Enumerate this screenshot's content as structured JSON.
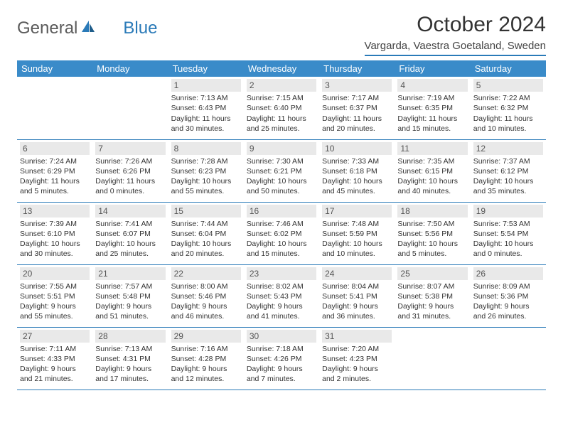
{
  "logo": {
    "text1": "General",
    "text2": "Blue"
  },
  "title": "October 2024",
  "location": "Vargarda, Vaestra Goetaland, Sweden",
  "colors": {
    "header_bg": "#3a8bc9",
    "header_text": "#ffffff",
    "border": "#2a7ab8",
    "daynum_bg": "#e9e9e9",
    "text": "#333333"
  },
  "weekdays": [
    "Sunday",
    "Monday",
    "Tuesday",
    "Wednesday",
    "Thursday",
    "Friday",
    "Saturday"
  ],
  "weeks": [
    [
      null,
      null,
      {
        "d": "1",
        "sr": "Sunrise: 7:13 AM",
        "ss": "Sunset: 6:43 PM",
        "dl1": "Daylight: 11 hours",
        "dl2": "and 30 minutes."
      },
      {
        "d": "2",
        "sr": "Sunrise: 7:15 AM",
        "ss": "Sunset: 6:40 PM",
        "dl1": "Daylight: 11 hours",
        "dl2": "and 25 minutes."
      },
      {
        "d": "3",
        "sr": "Sunrise: 7:17 AM",
        "ss": "Sunset: 6:37 PM",
        "dl1": "Daylight: 11 hours",
        "dl2": "and 20 minutes."
      },
      {
        "d": "4",
        "sr": "Sunrise: 7:19 AM",
        "ss": "Sunset: 6:35 PM",
        "dl1": "Daylight: 11 hours",
        "dl2": "and 15 minutes."
      },
      {
        "d": "5",
        "sr": "Sunrise: 7:22 AM",
        "ss": "Sunset: 6:32 PM",
        "dl1": "Daylight: 11 hours",
        "dl2": "and 10 minutes."
      }
    ],
    [
      {
        "d": "6",
        "sr": "Sunrise: 7:24 AM",
        "ss": "Sunset: 6:29 PM",
        "dl1": "Daylight: 11 hours",
        "dl2": "and 5 minutes."
      },
      {
        "d": "7",
        "sr": "Sunrise: 7:26 AM",
        "ss": "Sunset: 6:26 PM",
        "dl1": "Daylight: 11 hours",
        "dl2": "and 0 minutes."
      },
      {
        "d": "8",
        "sr": "Sunrise: 7:28 AM",
        "ss": "Sunset: 6:23 PM",
        "dl1": "Daylight: 10 hours",
        "dl2": "and 55 minutes."
      },
      {
        "d": "9",
        "sr": "Sunrise: 7:30 AM",
        "ss": "Sunset: 6:21 PM",
        "dl1": "Daylight: 10 hours",
        "dl2": "and 50 minutes."
      },
      {
        "d": "10",
        "sr": "Sunrise: 7:33 AM",
        "ss": "Sunset: 6:18 PM",
        "dl1": "Daylight: 10 hours",
        "dl2": "and 45 minutes."
      },
      {
        "d": "11",
        "sr": "Sunrise: 7:35 AM",
        "ss": "Sunset: 6:15 PM",
        "dl1": "Daylight: 10 hours",
        "dl2": "and 40 minutes."
      },
      {
        "d": "12",
        "sr": "Sunrise: 7:37 AM",
        "ss": "Sunset: 6:12 PM",
        "dl1": "Daylight: 10 hours",
        "dl2": "and 35 minutes."
      }
    ],
    [
      {
        "d": "13",
        "sr": "Sunrise: 7:39 AM",
        "ss": "Sunset: 6:10 PM",
        "dl1": "Daylight: 10 hours",
        "dl2": "and 30 minutes."
      },
      {
        "d": "14",
        "sr": "Sunrise: 7:41 AM",
        "ss": "Sunset: 6:07 PM",
        "dl1": "Daylight: 10 hours",
        "dl2": "and 25 minutes."
      },
      {
        "d": "15",
        "sr": "Sunrise: 7:44 AM",
        "ss": "Sunset: 6:04 PM",
        "dl1": "Daylight: 10 hours",
        "dl2": "and 20 minutes."
      },
      {
        "d": "16",
        "sr": "Sunrise: 7:46 AM",
        "ss": "Sunset: 6:02 PM",
        "dl1": "Daylight: 10 hours",
        "dl2": "and 15 minutes."
      },
      {
        "d": "17",
        "sr": "Sunrise: 7:48 AM",
        "ss": "Sunset: 5:59 PM",
        "dl1": "Daylight: 10 hours",
        "dl2": "and 10 minutes."
      },
      {
        "d": "18",
        "sr": "Sunrise: 7:50 AM",
        "ss": "Sunset: 5:56 PM",
        "dl1": "Daylight: 10 hours",
        "dl2": "and 5 minutes."
      },
      {
        "d": "19",
        "sr": "Sunrise: 7:53 AM",
        "ss": "Sunset: 5:54 PM",
        "dl1": "Daylight: 10 hours",
        "dl2": "and 0 minutes."
      }
    ],
    [
      {
        "d": "20",
        "sr": "Sunrise: 7:55 AM",
        "ss": "Sunset: 5:51 PM",
        "dl1": "Daylight: 9 hours",
        "dl2": "and 55 minutes."
      },
      {
        "d": "21",
        "sr": "Sunrise: 7:57 AM",
        "ss": "Sunset: 5:48 PM",
        "dl1": "Daylight: 9 hours",
        "dl2": "and 51 minutes."
      },
      {
        "d": "22",
        "sr": "Sunrise: 8:00 AM",
        "ss": "Sunset: 5:46 PM",
        "dl1": "Daylight: 9 hours",
        "dl2": "and 46 minutes."
      },
      {
        "d": "23",
        "sr": "Sunrise: 8:02 AM",
        "ss": "Sunset: 5:43 PM",
        "dl1": "Daylight: 9 hours",
        "dl2": "and 41 minutes."
      },
      {
        "d": "24",
        "sr": "Sunrise: 8:04 AM",
        "ss": "Sunset: 5:41 PM",
        "dl1": "Daylight: 9 hours",
        "dl2": "and 36 minutes."
      },
      {
        "d": "25",
        "sr": "Sunrise: 8:07 AM",
        "ss": "Sunset: 5:38 PM",
        "dl1": "Daylight: 9 hours",
        "dl2": "and 31 minutes."
      },
      {
        "d": "26",
        "sr": "Sunrise: 8:09 AM",
        "ss": "Sunset: 5:36 PM",
        "dl1": "Daylight: 9 hours",
        "dl2": "and 26 minutes."
      }
    ],
    [
      {
        "d": "27",
        "sr": "Sunrise: 7:11 AM",
        "ss": "Sunset: 4:33 PM",
        "dl1": "Daylight: 9 hours",
        "dl2": "and 21 minutes."
      },
      {
        "d": "28",
        "sr": "Sunrise: 7:13 AM",
        "ss": "Sunset: 4:31 PM",
        "dl1": "Daylight: 9 hours",
        "dl2": "and 17 minutes."
      },
      {
        "d": "29",
        "sr": "Sunrise: 7:16 AM",
        "ss": "Sunset: 4:28 PM",
        "dl1": "Daylight: 9 hours",
        "dl2": "and 12 minutes."
      },
      {
        "d": "30",
        "sr": "Sunrise: 7:18 AM",
        "ss": "Sunset: 4:26 PM",
        "dl1": "Daylight: 9 hours",
        "dl2": "and 7 minutes."
      },
      {
        "d": "31",
        "sr": "Sunrise: 7:20 AM",
        "ss": "Sunset: 4:23 PM",
        "dl1": "Daylight: 9 hours",
        "dl2": "and 2 minutes."
      },
      null,
      null
    ]
  ]
}
